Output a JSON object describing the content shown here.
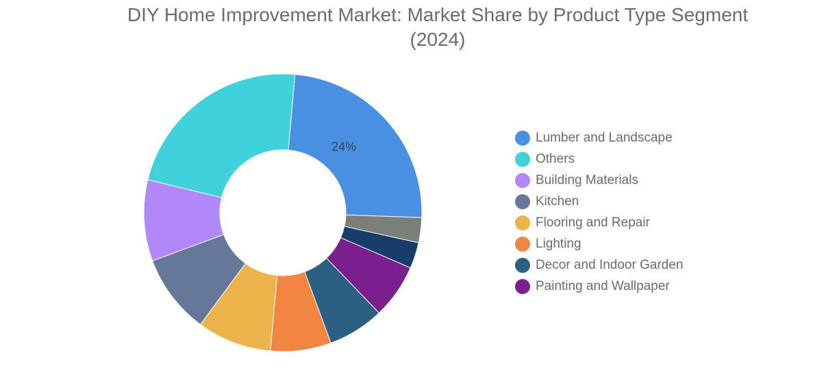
{
  "chart_data": {
    "type": "pie",
    "title_lines": [
      "DIY Home Improvement Market: Market Share by Product Type Segment",
      "(2024)"
    ],
    "slices": [
      {
        "name": "Lumber and Landscape",
        "value": 24,
        "color": "#4a90e2",
        "in_legend": true,
        "label": "24%"
      },
      {
        "name": "",
        "value": 2.9,
        "color": "#7a7f7a",
        "in_legend": false
      },
      {
        "name": "",
        "value": 3.0,
        "color": "#173d6b",
        "in_legend": false
      },
      {
        "name": "Painting and Wallpaper",
        "value": 6.3,
        "color": "#7b1f8f",
        "in_legend": true
      },
      {
        "name": "Decor and Indoor Garden",
        "value": 6.5,
        "color": "#2b5f84",
        "in_legend": true
      },
      {
        "name": "Lighting",
        "value": 7.0,
        "color": "#f28541",
        "in_legend": true
      },
      {
        "name": "Flooring and Repair",
        "value": 8.6,
        "color": "#edb34b",
        "in_legend": true
      },
      {
        "name": "Kitchen",
        "value": 9.2,
        "color": "#65789a",
        "in_legend": true
      },
      {
        "name": "Building Materials",
        "value": 9.4,
        "color": "#b287fa",
        "in_legend": true
      },
      {
        "name": "Others",
        "value": 22.4,
        "color": "#3fd1dc",
        "in_legend": true
      }
    ],
    "legend_order": [
      "Lumber and Landscape",
      "Others",
      "Building Materials",
      "Kitchen",
      "Flooring and Repair",
      "Lighting",
      "Decor and Indoor Garden",
      "Painting and Wallpaper"
    ],
    "legend_position": "right",
    "donut": true
  }
}
